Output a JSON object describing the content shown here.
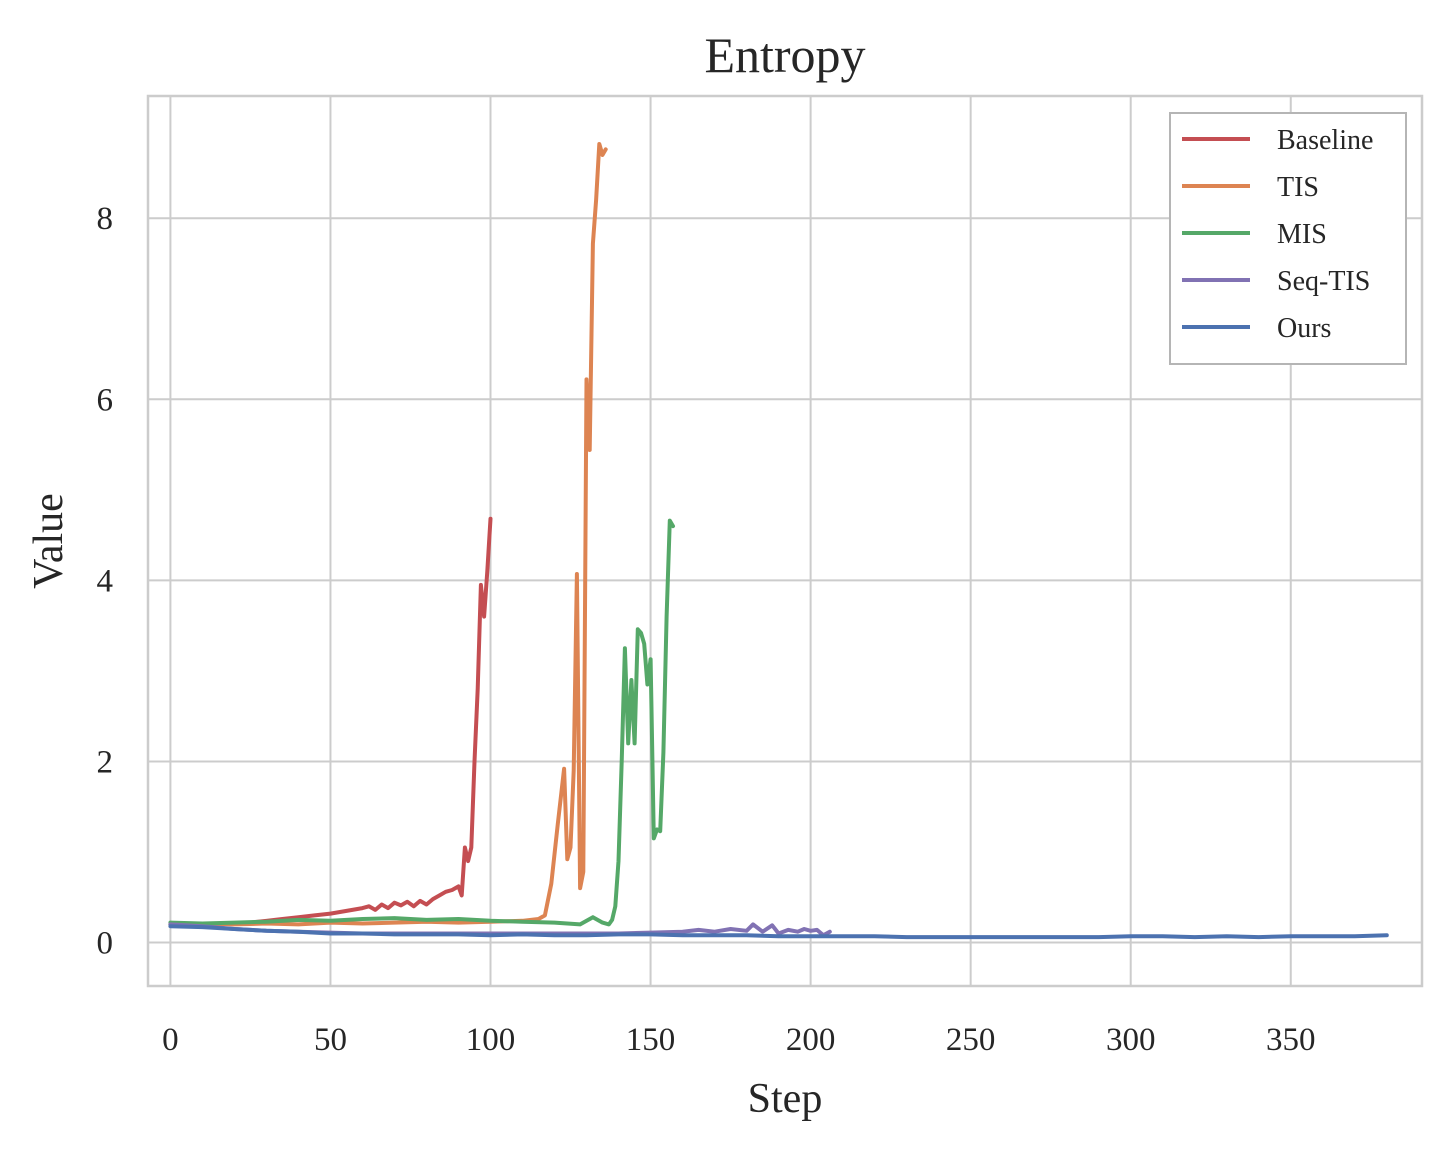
{
  "chart_data": {
    "type": "line",
    "title": "Entropy",
    "xlabel": "Step",
    "ylabel": "Value",
    "xlim": [
      -7,
      391
    ],
    "ylim": [
      -0.48,
      9.35
    ],
    "xticks": [
      0,
      50,
      100,
      150,
      200,
      250,
      300,
      350
    ],
    "yticks": [
      0,
      2,
      4,
      6,
      8
    ],
    "grid": true,
    "legend_position": "upper right",
    "series": [
      {
        "name": "Baseline",
        "color": "#c44e52",
        "x": [
          0,
          5,
          10,
          15,
          20,
          25,
          30,
          35,
          40,
          45,
          50,
          55,
          60,
          62,
          64,
          66,
          68,
          70,
          72,
          74,
          76,
          78,
          80,
          82,
          84,
          86,
          88,
          90,
          91,
          92,
          93,
          94,
          95,
          96,
          97,
          98,
          99,
          100
        ],
        "y": [
          0.2,
          0.21,
          0.19,
          0.2,
          0.21,
          0.22,
          0.24,
          0.26,
          0.28,
          0.3,
          0.32,
          0.35,
          0.38,
          0.4,
          0.36,
          0.42,
          0.38,
          0.44,
          0.41,
          0.45,
          0.4,
          0.46,
          0.42,
          0.48,
          0.52,
          0.56,
          0.58,
          0.62,
          0.52,
          1.05,
          0.9,
          1.05,
          2.0,
          2.8,
          3.95,
          3.6,
          4.1,
          4.68
        ]
      },
      {
        "name": "TIS",
        "color": "#dd8452",
        "x": [
          0,
          10,
          20,
          30,
          40,
          50,
          60,
          70,
          80,
          90,
          100,
          110,
          115,
          117,
          119,
          121,
          123,
          124,
          125,
          126,
          127,
          128,
          129,
          130,
          131,
          132,
          133,
          134,
          135,
          136
        ],
        "y": [
          0.2,
          0.21,
          0.2,
          0.21,
          0.2,
          0.22,
          0.21,
          0.22,
          0.23,
          0.22,
          0.23,
          0.24,
          0.26,
          0.3,
          0.65,
          1.3,
          1.92,
          0.92,
          1.05,
          1.9,
          4.07,
          0.6,
          0.78,
          6.22,
          5.44,
          7.72,
          8.2,
          8.82,
          8.7,
          8.76
        ]
      },
      {
        "name": "MIS",
        "color": "#55a868",
        "x": [
          0,
          10,
          20,
          30,
          40,
          50,
          60,
          70,
          80,
          90,
          100,
          110,
          120,
          128,
          132,
          135,
          137,
          138,
          139,
          140,
          141,
          142,
          143,
          144,
          145,
          146,
          147,
          148,
          149,
          150,
          151,
          152,
          153,
          154,
          155,
          156,
          157
        ],
        "y": [
          0.22,
          0.21,
          0.22,
          0.23,
          0.25,
          0.24,
          0.26,
          0.27,
          0.25,
          0.26,
          0.24,
          0.23,
          0.22,
          0.2,
          0.28,
          0.22,
          0.2,
          0.25,
          0.4,
          0.9,
          2.0,
          3.25,
          2.2,
          2.9,
          2.2,
          3.46,
          3.42,
          3.3,
          2.85,
          3.13,
          1.15,
          1.25,
          1.23,
          2.1,
          3.6,
          4.66,
          4.6
        ]
      },
      {
        "name": "Seq-TIS",
        "color": "#8172b3",
        "x": [
          0,
          10,
          20,
          30,
          40,
          50,
          60,
          70,
          80,
          90,
          100,
          110,
          120,
          130,
          140,
          150,
          160,
          165,
          170,
          175,
          180,
          182,
          185,
          188,
          190,
          193,
          196,
          198,
          200,
          202,
          204,
          206
        ],
        "y": [
          0.2,
          0.18,
          0.15,
          0.13,
          0.12,
          0.11,
          0.1,
          0.1,
          0.1,
          0.1,
          0.1,
          0.1,
          0.1,
          0.1,
          0.1,
          0.11,
          0.12,
          0.14,
          0.12,
          0.15,
          0.13,
          0.2,
          0.12,
          0.19,
          0.1,
          0.14,
          0.12,
          0.15,
          0.13,
          0.14,
          0.08,
          0.12
        ]
      },
      {
        "name": "Ours",
        "color": "#4c72b0",
        "x": [
          0,
          10,
          20,
          30,
          40,
          50,
          60,
          70,
          80,
          90,
          100,
          110,
          120,
          130,
          140,
          150,
          160,
          170,
          180,
          190,
          200,
          210,
          220,
          230,
          240,
          250,
          260,
          270,
          280,
          290,
          300,
          310,
          320,
          330,
          340,
          350,
          360,
          370,
          380
        ],
        "y": [
          0.18,
          0.17,
          0.15,
          0.13,
          0.12,
          0.1,
          0.1,
          0.09,
          0.09,
          0.09,
          0.08,
          0.09,
          0.08,
          0.08,
          0.09,
          0.09,
          0.08,
          0.08,
          0.08,
          0.07,
          0.07,
          0.07,
          0.07,
          0.06,
          0.06,
          0.06,
          0.06,
          0.06,
          0.06,
          0.06,
          0.07,
          0.07,
          0.06,
          0.07,
          0.06,
          0.07,
          0.07,
          0.07,
          0.08
        ]
      }
    ]
  }
}
